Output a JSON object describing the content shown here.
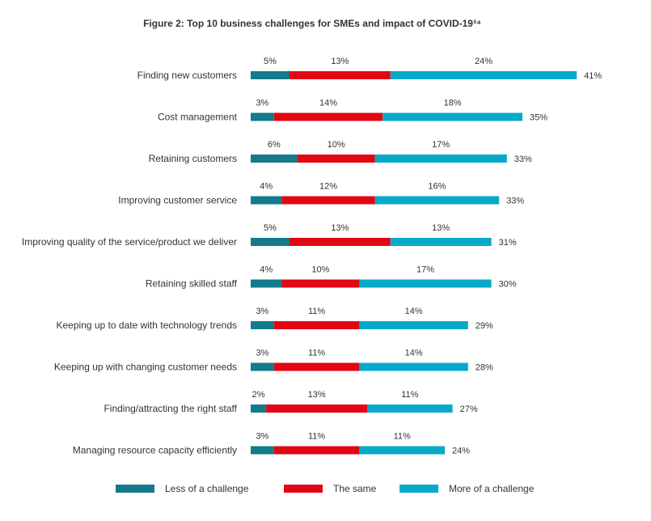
{
  "chart_data": {
    "type": "bar",
    "orientation": "horizontal",
    "stacked": true,
    "title": "Figure 2: Top 10 business challenges for SMEs and impact of COVID-19³⁴",
    "categories": [
      "Finding new customers",
      "Cost management",
      "Retaining customers",
      "Improving customer service",
      "Improving quality of the service/product we deliver",
      "Retaining skilled staff",
      "Keeping up to date with technology trends",
      "Keeping up with changing customer needs",
      "Finding/attracting the right staff",
      "Managing resource capacity efficiently"
    ],
    "series": [
      {
        "name": "Less of a challenge",
        "color": "#147a8c",
        "values": [
          5,
          3,
          6,
          4,
          5,
          4,
          3,
          3,
          2,
          3
        ],
        "labels": [
          "5%",
          "3%",
          "6%",
          "4%",
          "5%",
          "4%",
          "3%",
          "3%",
          "2%",
          "3%"
        ]
      },
      {
        "name": "The same",
        "color": "#e30613",
        "values": [
          13,
          14,
          10,
          12,
          13,
          10,
          11,
          11,
          13,
          11
        ],
        "labels": [
          "13%",
          "14%",
          "10%",
          "12%",
          "13%",
          "10%",
          "11%",
          "11%",
          "13%",
          "11%"
        ]
      },
      {
        "name": "More of a challenge",
        "color": "#06aac8",
        "values": [
          24,
          18,
          17,
          16,
          13,
          17,
          14,
          14,
          11,
          11
        ],
        "labels": [
          "24%",
          "18%",
          "17%",
          "16%",
          "13%",
          "17%",
          "14%",
          "14%",
          "11%",
          "11%"
        ]
      }
    ],
    "totals": [
      41,
      35,
      33,
      33,
      31,
      30,
      29,
      28,
      27,
      24
    ],
    "total_labels": [
      "41%",
      "35%",
      "33%",
      "33%",
      "31%",
      "30%",
      "29%",
      "28%",
      "27%",
      "24%"
    ],
    "legend_position": "bottom",
    "grid": false
  }
}
